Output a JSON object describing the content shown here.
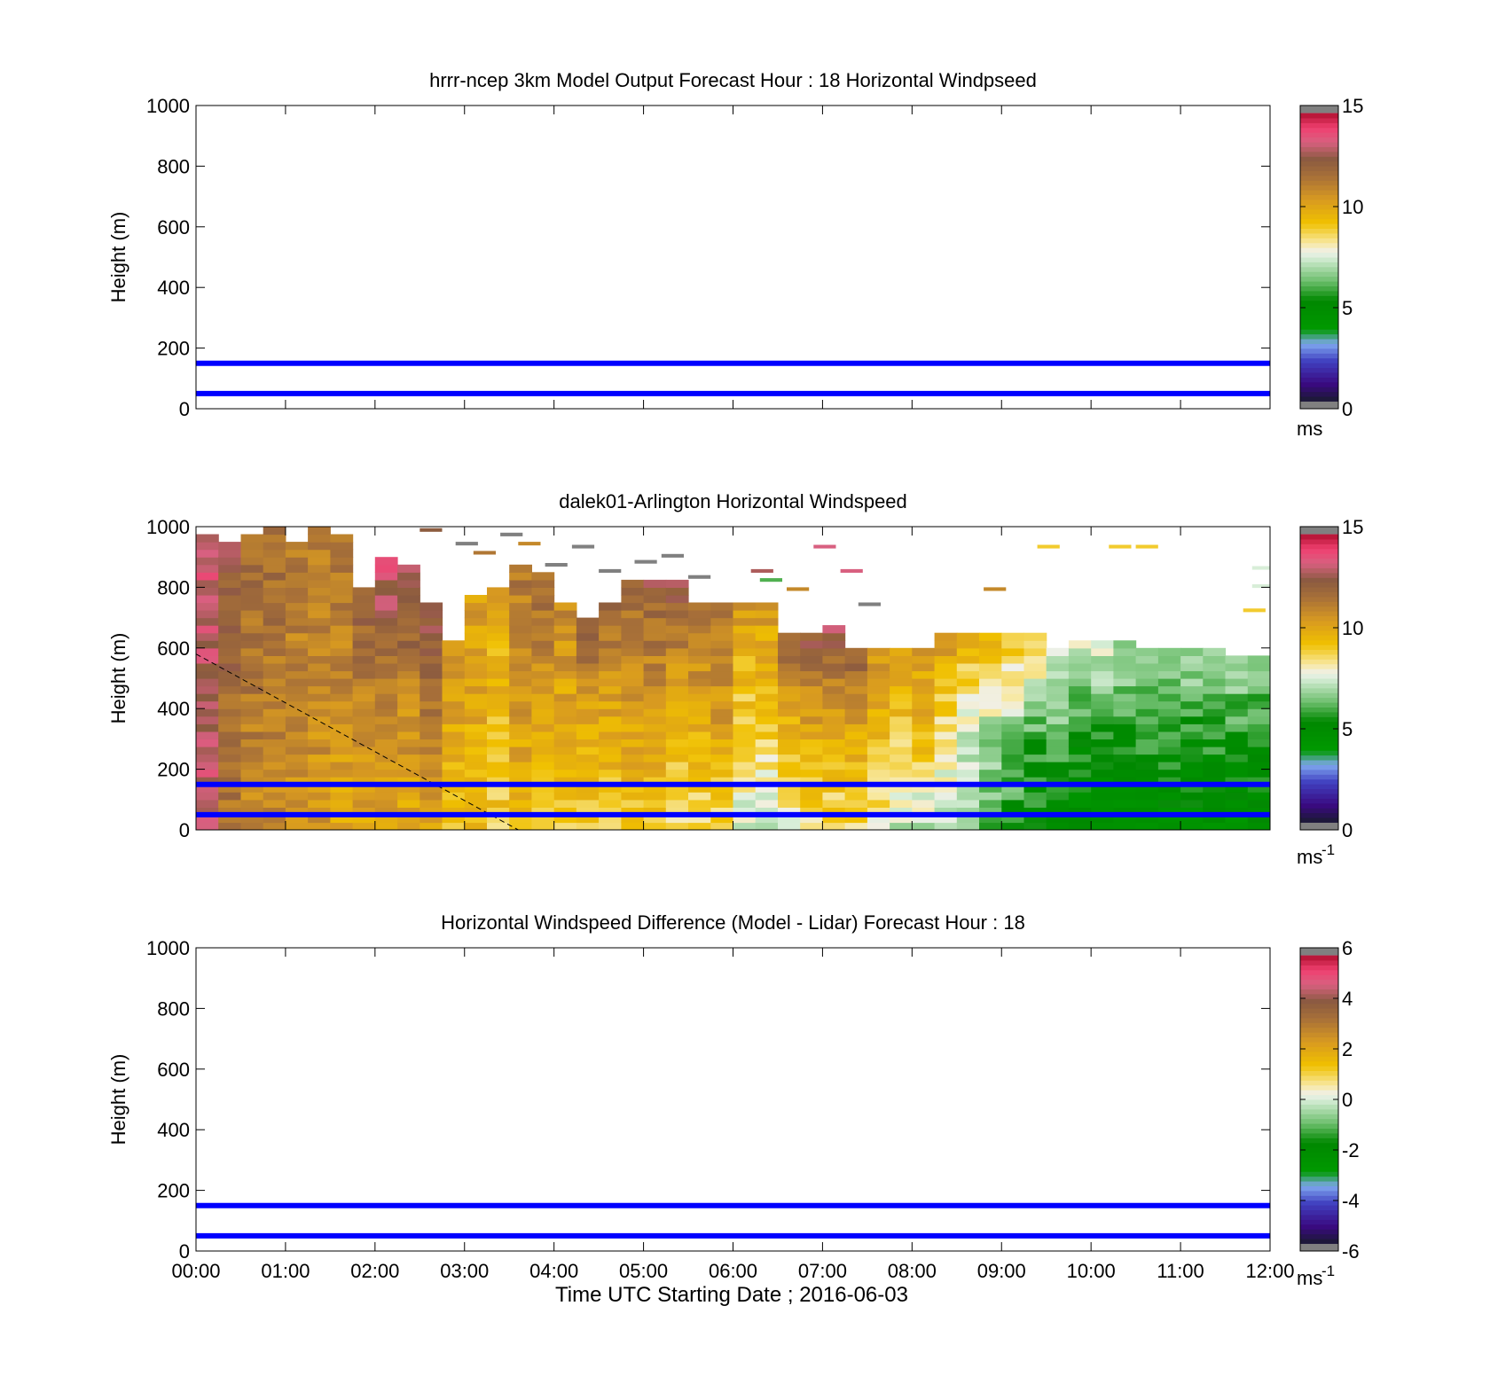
{
  "figure": {
    "xlabel": "Time UTC  Starting Date ; 2016-06-03",
    "xticks": [
      "00:00",
      "01:00",
      "02:00",
      "03:00",
      "04:00",
      "05:00",
      "06:00",
      "07:00",
      "08:00",
      "09:00",
      "10:00",
      "11:00",
      "12:00"
    ]
  },
  "chart_data": [
    {
      "type": "heatmap",
      "title": "hrrr-ncep 3km Model Output   Forecast Hour : 18 Horizontal Windpseed",
      "ylabel": "Height (m)",
      "ylim": [
        0,
        1000
      ],
      "yticks": [
        "0",
        "200",
        "400",
        "600",
        "800",
        "1000"
      ],
      "colorbar": {
        "min": 0,
        "max": 15,
        "ticks": [
          "0",
          "5",
          "10",
          "15"
        ],
        "unit": "ms"
      },
      "hlines": [
        50,
        150
      ],
      "hline_color": "#0000ff",
      "cells": []
    },
    {
      "type": "heatmap",
      "title": "dalek01-Arlington  Horizontal Windspeed",
      "ylabel": "Height (m)",
      "ylim": [
        0,
        1000
      ],
      "yticks": [
        "0",
        "200",
        "400",
        "600",
        "800",
        "1000"
      ],
      "colorbar": {
        "min": 0,
        "max": 15,
        "ticks": [
          "0",
          "5",
          "10",
          "15"
        ],
        "unit": "ms",
        "unit_sup": "-1"
      },
      "hlines": [
        50,
        150
      ],
      "hline_color": "#0000ff",
      "dashed_line": {
        "from": [
          0.0,
          580
        ],
        "to": [
          3.6,
          0
        ]
      },
      "profile_hours_step": 0.25,
      "columns": [
        {
          "top": 980,
          "low": 13.5,
          "mid": 13.0,
          "high": 13.5
        },
        {
          "top": 950,
          "low": 11.5,
          "mid": 12.0,
          "high": 12.5
        },
        {
          "top": 980,
          "low": 11.0,
          "mid": 11.5,
          "high": 12.0
        },
        {
          "top": 1000,
          "low": 11.0,
          "mid": 11.5,
          "high": 12.0
        },
        {
          "top": 940,
          "low": 10.5,
          "mid": 11.0,
          "high": 11.5
        },
        {
          "top": 1000,
          "low": 10.5,
          "mid": 11.0,
          "high": 11.5
        },
        {
          "top": 980,
          "low": 10.0,
          "mid": 11.0,
          "high": 11.5
        },
        {
          "top": 790,
          "low": 10.0,
          "mid": 11.0,
          "high": 12.5
        },
        {
          "top": 900,
          "low": 10.0,
          "mid": 11.5,
          "high": 13.5
        },
        {
          "top": 880,
          "low": 10.0,
          "mid": 11.0,
          "high": 13.5
        },
        {
          "top": 740,
          "low": 10.0,
          "mid": 11.5,
          "high": 13.0
        },
        {
          "top": 620,
          "low": 9.5,
          "mid": 10.0,
          "high": 10.5
        },
        {
          "top": 780,
          "low": 9.5,
          "mid": 10.0,
          "high": 10.5
        },
        {
          "top": 800,
          "low": 9.0,
          "mid": 9.5,
          "high": 10.0
        },
        {
          "top": 870,
          "low": 9.5,
          "mid": 10.5,
          "high": 11.5
        },
        {
          "top": 850,
          "low": 9.0,
          "mid": 10.5,
          "high": 12.0
        },
        {
          "top": 760,
          "low": 9.0,
          "mid": 10.0,
          "high": 11.0
        },
        {
          "top": 690,
          "low": 9.0,
          "mid": 10.0,
          "high": 12.5
        },
        {
          "top": 740,
          "low": 9.0,
          "mid": 10.0,
          "high": 12.0
        },
        {
          "top": 820,
          "low": 9.0,
          "mid": 10.5,
          "high": 12.0
        },
        {
          "top": 820,
          "low": 9.0,
          "mid": 10.5,
          "high": 12.5
        },
        {
          "top": 820,
          "low": 8.5,
          "mid": 10.0,
          "high": 12.5
        },
        {
          "top": 760,
          "low": 8.5,
          "mid": 10.0,
          "high": 12.0
        },
        {
          "top": 760,
          "low": 8.5,
          "mid": 10.5,
          "high": 11.5
        },
        {
          "top": 760,
          "low": 7.5,
          "mid": 9.0,
          "high": 10.5
        },
        {
          "top": 740,
          "low": 7.5,
          "mid": 9.0,
          "high": 10.5
        },
        {
          "top": 660,
          "low": 8.0,
          "mid": 9.5,
          "high": 12.5
        },
        {
          "top": 640,
          "low": 8.5,
          "mid": 10.0,
          "high": 12.5
        },
        {
          "top": 680,
          "low": 8.5,
          "mid": 10.0,
          "high": 13.0
        },
        {
          "top": 600,
          "low": 8.5,
          "mid": 10.0,
          "high": 12.5
        },
        {
          "top": 600,
          "low": 8.0,
          "mid": 9.5,
          "high": 10.5
        },
        {
          "top": 600,
          "low": 7.0,
          "mid": 9.0,
          "high": 10.5
        },
        {
          "top": 600,
          "low": 7.0,
          "mid": 9.5,
          "high": 10.5
        },
        {
          "top": 650,
          "low": 7.0,
          "mid": 8.5,
          "high": 10.5
        },
        {
          "top": 650,
          "low": 6.5,
          "mid": 7.5,
          "high": 10.0
        },
        {
          "top": 650,
          "low": 6.0,
          "mid": 7.0,
          "high": 10.0
        },
        {
          "top": 650,
          "low": 5.5,
          "mid": 6.5,
          "high": 9.5
        },
        {
          "top": 640,
          "low": 5.0,
          "mid": 6.0,
          "high": 9.0
        },
        {
          "top": 610,
          "low": 5.0,
          "mid": 6.0,
          "high": 8.0
        },
        {
          "top": 620,
          "low": 4.5,
          "mid": 5.5,
          "high": 7.5
        },
        {
          "top": 620,
          "low": 4.5,
          "mid": 5.5,
          "high": 7.5
        },
        {
          "top": 620,
          "low": 4.5,
          "mid": 5.5,
          "high": 7.0
        },
        {
          "top": 600,
          "low": 4.5,
          "mid": 5.5,
          "high": 7.0
        },
        {
          "top": 590,
          "low": 4.5,
          "mid": 5.5,
          "high": 7.0
        },
        {
          "top": 590,
          "low": 4.5,
          "mid": 5.5,
          "high": 7.0
        },
        {
          "top": 590,
          "low": 4.5,
          "mid": 5.5,
          "high": 7.0
        },
        {
          "top": 580,
          "low": 4.5,
          "mid": 5.5,
          "high": 7.0
        },
        {
          "top": 580,
          "low": 4.5,
          "mid": 5.5,
          "high": 6.5
        }
      ],
      "speckles": [
        {
          "h": 2.5,
          "z": 985,
          "v": 12.5
        },
        {
          "h": 2.9,
          "z": 940,
          "v": 15.5
        },
        {
          "h": 3.1,
          "z": 910,
          "v": 11.5
        },
        {
          "h": 3.4,
          "z": 970,
          "v": 15.5
        },
        {
          "h": 3.6,
          "z": 940,
          "v": 11.0
        },
        {
          "h": 3.9,
          "z": 870,
          "v": 15.5
        },
        {
          "h": 4.2,
          "z": 930,
          "v": 15.5
        },
        {
          "h": 4.5,
          "z": 850,
          "v": 15.5
        },
        {
          "h": 4.9,
          "z": 880,
          "v": 15.5
        },
        {
          "h": 5.2,
          "z": 900,
          "v": 15.5
        },
        {
          "h": 5.5,
          "z": 830,
          "v": 15.5
        },
        {
          "h": 6.2,
          "z": 850,
          "v": 13.0
        },
        {
          "h": 6.3,
          "z": 820,
          "v": 6.0
        },
        {
          "h": 6.6,
          "z": 790,
          "v": 11.0
        },
        {
          "h": 6.9,
          "z": 930,
          "v": 13.5
        },
        {
          "h": 7.2,
          "z": 850,
          "v": 13.5
        },
        {
          "h": 7.4,
          "z": 740,
          "v": 15.5
        },
        {
          "h": 8.8,
          "z": 790,
          "v": 11.0
        },
        {
          "h": 9.4,
          "z": 930,
          "v": 9.0
        },
        {
          "h": 10.2,
          "z": 930,
          "v": 9.0
        },
        {
          "h": 10.5,
          "z": 930,
          "v": 9.0
        },
        {
          "h": 11.7,
          "z": 720,
          "v": 9.0
        },
        {
          "h": 11.8,
          "z": 860,
          "v": 7.5
        },
        {
          "h": 11.8,
          "z": 800,
          "v": 7.5
        }
      ]
    },
    {
      "type": "heatmap",
      "title": "Horizontal Windspeed Difference (Model - Lidar) Forecast Hour : 18",
      "ylabel": "Height (m)",
      "ylim": [
        0,
        1000
      ],
      "yticks": [
        "0",
        "200",
        "400",
        "600",
        "800",
        "1000"
      ],
      "colorbar": {
        "min": -6,
        "max": 6,
        "ticks": [
          "-6",
          "-4",
          "-2",
          "0",
          "2",
          "4",
          "6"
        ],
        "unit": "ms",
        "unit_sup": "-1"
      },
      "hlines": [
        50,
        150
      ],
      "hline_color": "#0000ff",
      "cells": []
    }
  ],
  "colormap_stops": [
    {
      "t": 0.0,
      "c": "#1a1a30"
    },
    {
      "t": 0.06,
      "c": "#3a0a80"
    },
    {
      "t": 0.14,
      "c": "#4040c0"
    },
    {
      "t": 0.2,
      "c": "#80a8f0"
    },
    {
      "t": 0.25,
      "c": "#009900"
    },
    {
      "t": 0.35,
      "c": "#008800"
    },
    {
      "t": 0.42,
      "c": "#70c070"
    },
    {
      "t": 0.5,
      "c": "#d8eed8"
    },
    {
      "t": 0.52,
      "c": "#f0f0e8"
    },
    {
      "t": 0.55,
      "c": "#f8e8a0"
    },
    {
      "t": 0.62,
      "c": "#f0c000"
    },
    {
      "t": 0.7,
      "c": "#d89a20"
    },
    {
      "t": 0.78,
      "c": "#a87038"
    },
    {
      "t": 0.84,
      "c": "#8a5a40"
    },
    {
      "t": 0.9,
      "c": "#d86080"
    },
    {
      "t": 0.95,
      "c": "#f04070"
    },
    {
      "t": 1.0,
      "c": "#b01030"
    }
  ],
  "over_color": "#808080",
  "under_color": "#808080"
}
